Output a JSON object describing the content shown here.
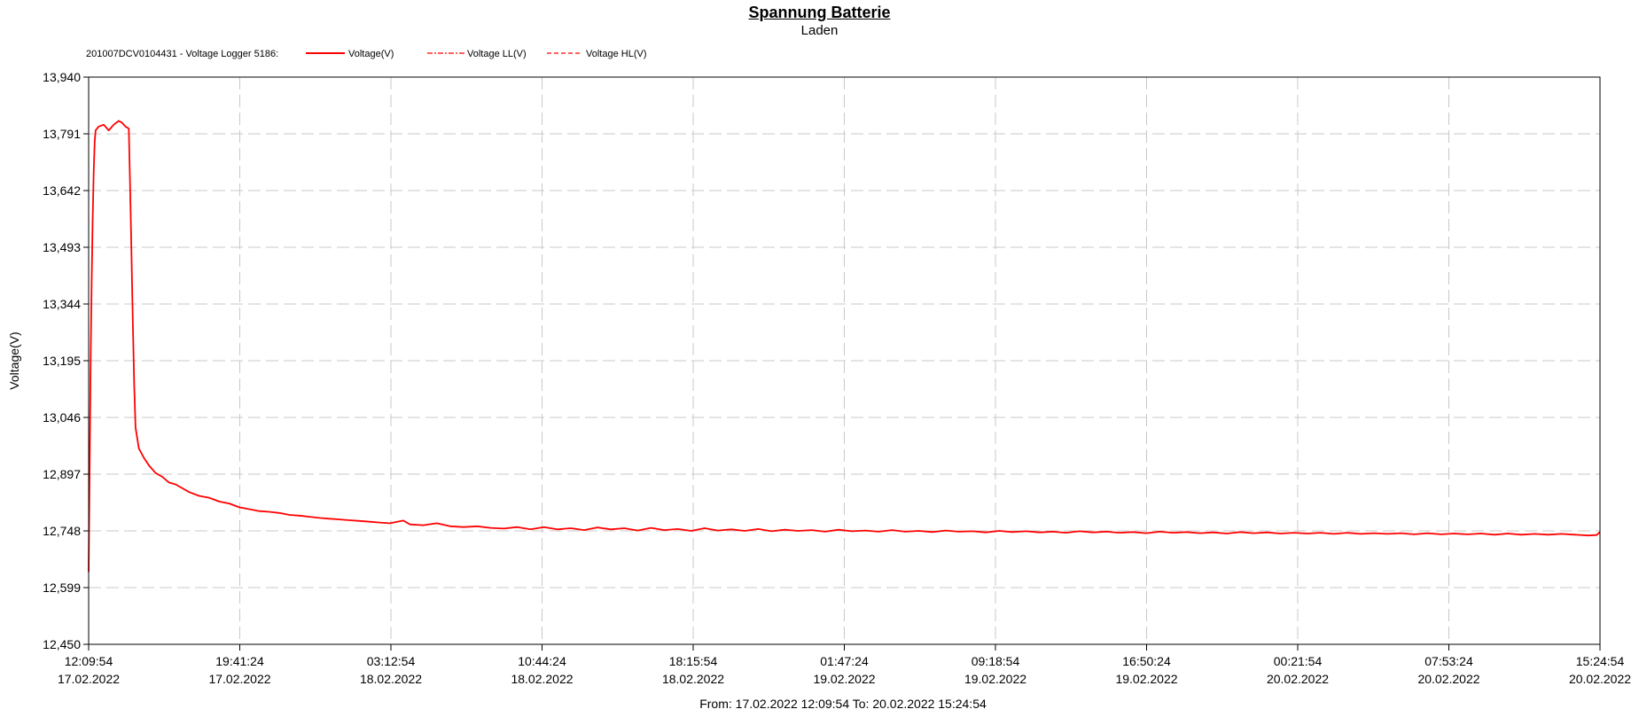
{
  "chart_data": {
    "type": "line",
    "title": "Spannung Batterie",
    "subtitle": "Laden",
    "ylabel": "Voltage(V)",
    "xlabel": "",
    "ylim": [
      12.45,
      13.94
    ],
    "y_ticks": [
      "13,940",
      "13,791",
      "13,642",
      "13,493",
      "13,344",
      "13,195",
      "13,046",
      "12,897",
      "12,748",
      "12,599",
      "12,450"
    ],
    "x_range_minutes": [
      0,
      4515
    ],
    "x_ticks": [
      {
        "time": "12:09:54",
        "date": "17.02.2022"
      },
      {
        "time": "19:41:24",
        "date": "17.02.2022"
      },
      {
        "time": "03:12:54",
        "date": "18.02.2022"
      },
      {
        "time": "10:44:24",
        "date": "18.02.2022"
      },
      {
        "time": "18:15:54",
        "date": "18.02.2022"
      },
      {
        "time": "01:47:24",
        "date": "19.02.2022"
      },
      {
        "time": "09:18:54",
        "date": "19.02.2022"
      },
      {
        "time": "16:50:24",
        "date": "19.02.2022"
      },
      {
        "time": "00:21:54",
        "date": "20.02.2022"
      },
      {
        "time": "07:53:24",
        "date": "20.02.2022"
      },
      {
        "time": "15:24:54",
        "date": "20.02.2022"
      }
    ],
    "grid": true,
    "legend": {
      "prefix": "201007DCV0104431 - Voltage Logger 5186:",
      "placement": "top-left",
      "entries": [
        {
          "name": "Voltage(V)",
          "style": "solid"
        },
        {
          "name": "Voltage LL(V)",
          "style": "dash-dot"
        },
        {
          "name": "Voltage HL(V)",
          "style": "dashed"
        }
      ]
    },
    "range_text": "From: 17.02.2022 12:09:54   To: 20.02.2022 15:24:54",
    "series": [
      {
        "name": "Voltage(V)",
        "color": "#ff0000",
        "points": [
          [
            0,
            12.64
          ],
          [
            3,
            12.9
          ],
          [
            6,
            13.2
          ],
          [
            9,
            13.4
          ],
          [
            12,
            13.56
          ],
          [
            15,
            13.69
          ],
          [
            18,
            13.77
          ],
          [
            21,
            13.8
          ],
          [
            30,
            13.81
          ],
          [
            45,
            13.815
          ],
          [
            60,
            13.8
          ],
          [
            75,
            13.815
          ],
          [
            90,
            13.825
          ],
          [
            100,
            13.82
          ],
          [
            110,
            13.81
          ],
          [
            120,
            13.805
          ],
          [
            124,
            13.65
          ],
          [
            128,
            13.48
          ],
          [
            132,
            13.3
          ],
          [
            136,
            13.13
          ],
          [
            140,
            13.02
          ],
          [
            150,
            12.965
          ],
          [
            165,
            12.94
          ],
          [
            180,
            12.92
          ],
          [
            200,
            12.9
          ],
          [
            220,
            12.89
          ],
          [
            240,
            12.875
          ],
          [
            260,
            12.87
          ],
          [
            280,
            12.86
          ],
          [
            300,
            12.85
          ],
          [
            330,
            12.84
          ],
          [
            360,
            12.835
          ],
          [
            390,
            12.825
          ],
          [
            420,
            12.82
          ],
          [
            450,
            12.81
          ],
          [
            480,
            12.805
          ],
          [
            510,
            12.8
          ],
          [
            540,
            12.798
          ],
          [
            570,
            12.795
          ],
          [
            600,
            12.79
          ],
          [
            630,
            12.788
          ],
          [
            660,
            12.785
          ],
          [
            690,
            12.782
          ],
          [
            720,
            12.78
          ],
          [
            750,
            12.778
          ],
          [
            780,
            12.776
          ],
          [
            810,
            12.774
          ],
          [
            840,
            12.772
          ],
          [
            870,
            12.77
          ],
          [
            900,
            12.768
          ],
          [
            940,
            12.775
          ],
          [
            960,
            12.765
          ],
          [
            1000,
            12.763
          ],
          [
            1040,
            12.768
          ],
          [
            1080,
            12.76
          ],
          [
            1120,
            12.758
          ],
          [
            1160,
            12.76
          ],
          [
            1200,
            12.756
          ],
          [
            1240,
            12.754
          ],
          [
            1280,
            12.758
          ],
          [
            1320,
            12.752
          ],
          [
            1360,
            12.758
          ],
          [
            1400,
            12.752
          ],
          [
            1440,
            12.755
          ],
          [
            1480,
            12.75
          ],
          [
            1520,
            12.757
          ],
          [
            1560,
            12.752
          ],
          [
            1600,
            12.755
          ],
          [
            1640,
            12.749
          ],
          [
            1680,
            12.756
          ],
          [
            1720,
            12.75
          ],
          [
            1760,
            12.753
          ],
          [
            1800,
            12.748
          ],
          [
            1840,
            12.755
          ],
          [
            1880,
            12.749
          ],
          [
            1920,
            12.752
          ],
          [
            1960,
            12.748
          ],
          [
            2000,
            12.753
          ],
          [
            2040,
            12.747
          ],
          [
            2080,
            12.751
          ],
          [
            2120,
            12.748
          ],
          [
            2160,
            12.75
          ],
          [
            2200,
            12.746
          ],
          [
            2240,
            12.751
          ],
          [
            2280,
            12.747
          ],
          [
            2320,
            12.749
          ],
          [
            2360,
            12.746
          ],
          [
            2400,
            12.75
          ],
          [
            2440,
            12.746
          ],
          [
            2480,
            12.748
          ],
          [
            2520,
            12.745
          ],
          [
            2560,
            12.749
          ],
          [
            2600,
            12.746
          ],
          [
            2640,
            12.747
          ],
          [
            2680,
            12.744
          ],
          [
            2720,
            12.748
          ],
          [
            2760,
            12.745
          ],
          [
            2800,
            12.747
          ],
          [
            2840,
            12.744
          ],
          [
            2880,
            12.746
          ],
          [
            2920,
            12.743
          ],
          [
            2960,
            12.747
          ],
          [
            3000,
            12.744
          ],
          [
            3040,
            12.746
          ],
          [
            3080,
            12.743
          ],
          [
            3120,
            12.745
          ],
          [
            3160,
            12.742
          ],
          [
            3200,
            12.746
          ],
          [
            3240,
            12.743
          ],
          [
            3280,
            12.745
          ],
          [
            3320,
            12.742
          ],
          [
            3360,
            12.744
          ],
          [
            3400,
            12.741
          ],
          [
            3440,
            12.745
          ],
          [
            3480,
            12.742
          ],
          [
            3520,
            12.744
          ],
          [
            3560,
            12.741
          ],
          [
            3600,
            12.743
          ],
          [
            3640,
            12.741
          ],
          [
            3680,
            12.743
          ],
          [
            3720,
            12.74
          ],
          [
            3760,
            12.743
          ],
          [
            3800,
            12.74
          ],
          [
            3840,
            12.742
          ],
          [
            3880,
            12.74
          ],
          [
            3920,
            12.742
          ],
          [
            3960,
            12.739
          ],
          [
            4000,
            12.742
          ],
          [
            4040,
            12.739
          ],
          [
            4080,
            12.741
          ],
          [
            4120,
            12.739
          ],
          [
            4160,
            12.741
          ],
          [
            4200,
            12.738
          ],
          [
            4240,
            12.741
          ],
          [
            4280,
            12.738
          ],
          [
            4320,
            12.74
          ],
          [
            4360,
            12.738
          ],
          [
            4400,
            12.74
          ],
          [
            4440,
            12.738
          ],
          [
            4480,
            12.736
          ],
          [
            4505,
            12.737
          ],
          [
            4515,
            12.745
          ]
        ]
      }
    ]
  }
}
